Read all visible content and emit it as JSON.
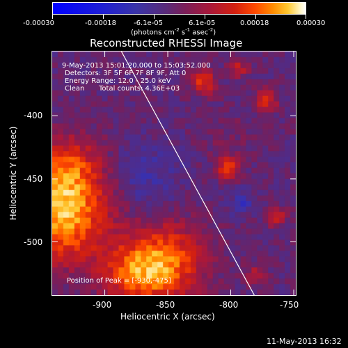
{
  "colorbar": {
    "ticks": [
      "-0.00030",
      "-0.00018",
      "-6.1e-05",
      "6.1e-05",
      "0.00018",
      "0.00030"
    ],
    "units_main": "(photons cm",
    "units_sup1": "-2",
    "units_mid1": " s",
    "units_sup2": "-1",
    "units_mid2": " asec",
    "units_sup3": "-2",
    "units_end": ")"
  },
  "title": "Reconstructed RHESSI Image",
  "info": {
    "time_range": "9-May-2013 15:01:20.000 to 15:03:52.000",
    "detectors": "Detectors: 3F 5F 6F 7F 8F 9F, Att 0",
    "energy": "Energy Range: 12.0 - 25.0 keV",
    "clean_label": "Clean",
    "total_counts": "Total counts: 4.36E+03",
    "peak": "Position of Peak = [-930,-475]"
  },
  "axes": {
    "xlabel": "Heliocentric X (arcsec)",
    "ylabel": "Heliocentric Y (arcsec)",
    "xticks": [
      "-900",
      "-850",
      "-800",
      "-750"
    ],
    "yticks": [
      "-400",
      "-450",
      "-500"
    ]
  },
  "footer": {
    "timestamp": "11-May-2013 16:32"
  }
}
